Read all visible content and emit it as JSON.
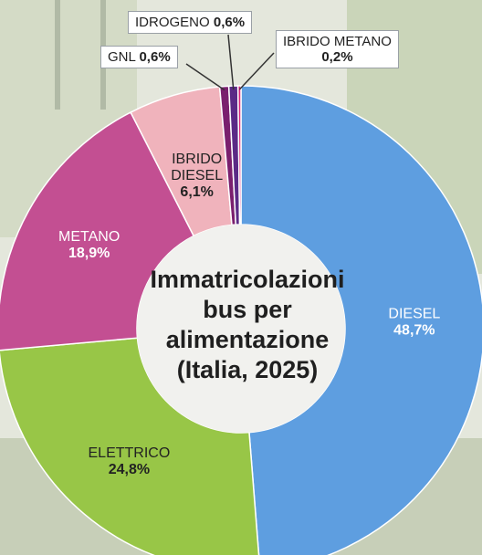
{
  "chart_data": {
    "type": "pie",
    "title": "Immatricolazioni bus per alimentazione (Italia, 2025)",
    "title_lines": [
      "Immatricolazioni",
      "bus per",
      "alimentazione",
      "(Italia, 2025)"
    ],
    "slices": [
      {
        "name": "DIESEL",
        "value": 48.7,
        "label": "48,7%",
        "color": "#5e9ee0"
      },
      {
        "name": "ELETTRICO",
        "value": 24.8,
        "label": "24,8%",
        "color": "#98c647"
      },
      {
        "name": "METANO",
        "value": 18.9,
        "label": "18,9%",
        "color": "#c34f92"
      },
      {
        "name": "IBRIDO DIESEL",
        "name_lines": [
          "IBRIDO",
          "DIESEL"
        ],
        "value": 6.1,
        "label": "6,1%",
        "color": "#f0b3bc"
      },
      {
        "name": "GNL",
        "value": 0.6,
        "label": "0,6%",
        "color": "#7a1f6e"
      },
      {
        "name": "IDROGENO",
        "value": 0.6,
        "label": "0,6%",
        "color": "#5b2a86"
      },
      {
        "name": "IBRIDO METANO",
        "value": 0.2,
        "label": "0,2%",
        "color": "#d8247c"
      }
    ]
  }
}
